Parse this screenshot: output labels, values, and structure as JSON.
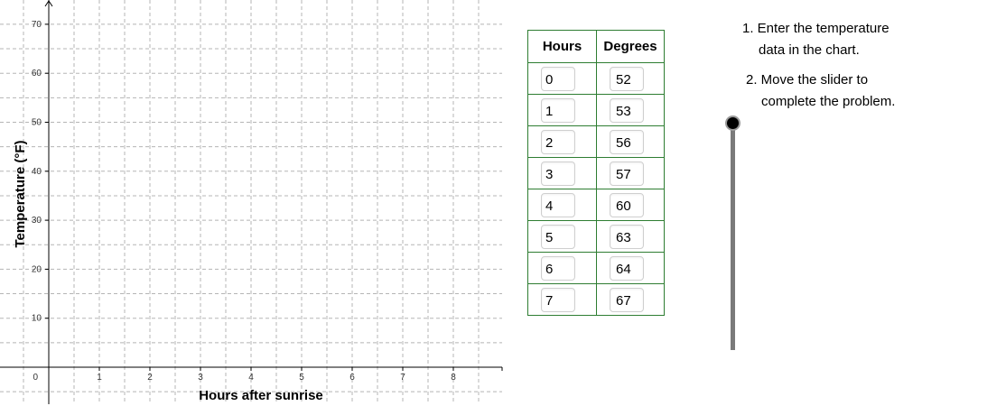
{
  "graph": {
    "x_axis_title": "Hours after sunrise",
    "y_axis_title": "Temperature (°F)",
    "x_ticks": [
      "1",
      "2",
      "3",
      "4",
      "5",
      "6",
      "7",
      "8"
    ],
    "y_ticks": [
      "10",
      "20",
      "30",
      "40",
      "50",
      "60",
      "70"
    ],
    "origin_label": "0",
    "grid": true,
    "grid_color": "#b5b5b5",
    "axis_color": "#000000"
  },
  "table": {
    "headers": {
      "hours": "Hours",
      "degrees": "Degrees"
    },
    "rows": [
      {
        "hours": "0",
        "degrees": "52"
      },
      {
        "hours": "1",
        "degrees": "53"
      },
      {
        "hours": "2",
        "degrees": "56"
      },
      {
        "hours": "3",
        "degrees": "57"
      },
      {
        "hours": "4",
        "degrees": "60"
      },
      {
        "hours": "5",
        "degrees": "63"
      },
      {
        "hours": "6",
        "degrees": "64"
      },
      {
        "hours": "7",
        "degrees": "67"
      }
    ],
    "border_color": "#2e7d32"
  },
  "instructions": [
    {
      "line1": "1. Enter the temperature",
      "line2": "data in the chart."
    },
    {
      "line1": "2. Move the slider to",
      "line2": "complete the problem."
    }
  ],
  "slider": {
    "value": 0
  }
}
